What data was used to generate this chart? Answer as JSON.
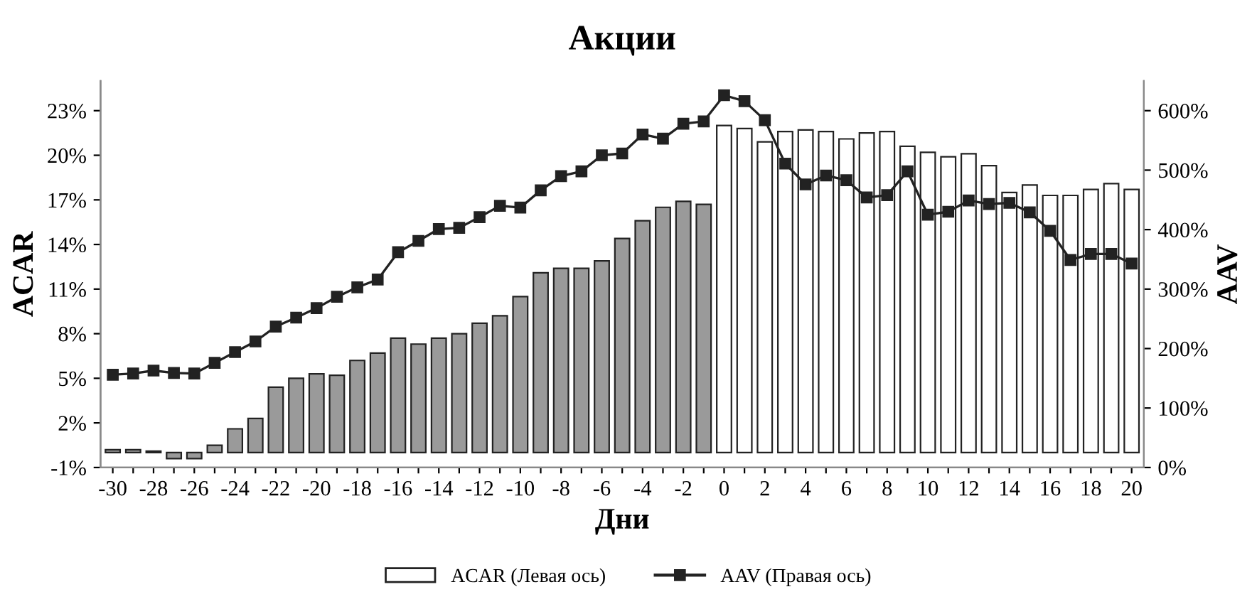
{
  "chart_data": {
    "type": "bar",
    "title": "Акции",
    "xlabel": "Дни",
    "ylabel": "ACAR",
    "y2label": "AAV",
    "categories": [
      "-30",
      null,
      "-28",
      null,
      "-26",
      null,
      "-24",
      null,
      "-22",
      null,
      "-20",
      null,
      "-18",
      null,
      "-16",
      null,
      "-14",
      null,
      "-12",
      null,
      "-10",
      null,
      "-8",
      null,
      "-6",
      null,
      "-4",
      null,
      "-2",
      null,
      "0",
      null,
      "2",
      null,
      "4",
      null,
      "6",
      null,
      "8",
      null,
      "10",
      null,
      "12",
      null,
      "14",
      null,
      "16",
      null,
      "18",
      null,
      "20"
    ],
    "series": [
      {
        "name": "ACAR (Левая ось)",
        "color": "#ffffff",
        "colors": [
          "#9a9a9a",
          "#9a9a9a",
          "#9a9a9a",
          "#9a9a9a",
          "#9a9a9a",
          "#9a9a9a",
          "#9a9a9a",
          "#9a9a9a",
          "#9a9a9a",
          "#9a9a9a",
          "#9a9a9a",
          "#9a9a9a",
          "#9a9a9a",
          "#9a9a9a",
          "#9a9a9a",
          "#9a9a9a",
          "#9a9a9a",
          "#9a9a9a",
          "#9a9a9a",
          "#9a9a9a",
          "#9a9a9a",
          "#9a9a9a",
          "#9a9a9a",
          "#9a9a9a",
          "#9a9a9a",
          "#9a9a9a",
          "#9a9a9a",
          "#9a9a9a",
          "#9a9a9a",
          "#9a9a9a",
          "#ffffff",
          "#ffffff",
          "#ffffff",
          "#ffffff",
          "#ffffff",
          "#ffffff",
          "#ffffff",
          "#ffffff",
          "#ffffff",
          "#ffffff",
          "#ffffff",
          "#ffffff",
          "#ffffff",
          "#ffffff",
          "#ffffff",
          "#ffffff",
          "#ffffff",
          "#ffffff",
          "#ffffff",
          "#ffffff",
          "#ffffff"
        ],
        "values": [
          0.2,
          0.2,
          0.1,
          -0.4,
          -0.4,
          0.5,
          1.6,
          2.3,
          4.4,
          5.0,
          5.3,
          5.2,
          6.2,
          6.7,
          7.7,
          7.3,
          7.7,
          8.0,
          8.7,
          9.2,
          10.5,
          12.1,
          12.4,
          12.4,
          12.9,
          14.4,
          15.6,
          16.5,
          16.9,
          16.7,
          22.0,
          21.8,
          20.9,
          21.6,
          21.7,
          21.6,
          21.1,
          21.5,
          21.6,
          20.6,
          20.2,
          19.9,
          20.1,
          19.3,
          17.5,
          18.0,
          17.3,
          17.3,
          17.7,
          18.1,
          17.7
        ]
      },
      {
        "name": "AAV (Правая ось)",
        "type": "line",
        "axis": "y2",
        "color": "#222222",
        "marker": "square",
        "line_style": "solid",
        "values": [
          156,
          158,
          163,
          159,
          158,
          176,
          194,
          212,
          237,
          252,
          268,
          287,
          303,
          316,
          362,
          381,
          401,
          403,
          421,
          440,
          437,
          466,
          490,
          498,
          525,
          528,
          560,
          553,
          578,
          582,
          626,
          616,
          584,
          511,
          476,
          491,
          483,
          454,
          458,
          498,
          425,
          430,
          449,
          443,
          445,
          429,
          398,
          349,
          359,
          359,
          343
        ]
      }
    ],
    "ylim": [
      -1,
      25
    ],
    "yticks": [
      {
        "value": -1,
        "label": "-1%"
      },
      {
        "value": 2,
        "label": "2%"
      },
      {
        "value": 5,
        "label": "5%"
      },
      {
        "value": 8,
        "label": "8%"
      },
      {
        "value": 11,
        "label": "11%"
      },
      {
        "value": 14,
        "label": "14%"
      },
      {
        "value": 17,
        "label": "17%"
      },
      {
        "value": 20,
        "label": "20%"
      },
      {
        "value": 23,
        "label": "23%"
      }
    ],
    "y2lim": [
      0,
      650
    ],
    "y2ticks": [
      {
        "value": 0,
        "label": "0%"
      },
      {
        "value": 100,
        "label": "100%"
      },
      {
        "value": 200,
        "label": "200%"
      },
      {
        "value": 300,
        "label": "300%"
      },
      {
        "value": 400,
        "label": "400%"
      },
      {
        "value": 500,
        "label": "500%"
      },
      {
        "value": 600,
        "label": "600%"
      }
    ],
    "grid": false,
    "legend": "bottom"
  }
}
